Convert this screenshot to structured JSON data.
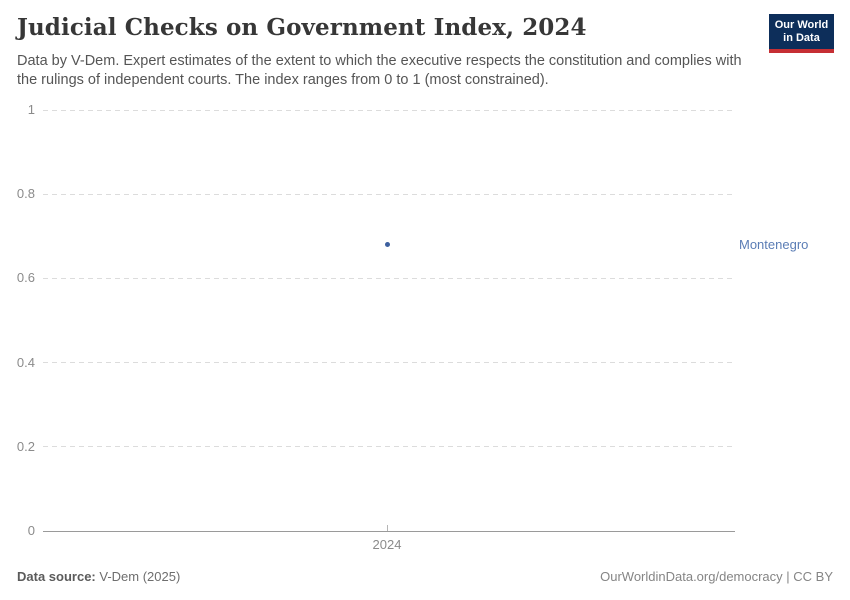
{
  "header": {
    "title": "Judicial Checks on Government Index, 2024",
    "subtitle": "Data by V-Dem. Expert estimates of the extent to which the executive respects the constitution and complies with the rulings of independent courts. The index ranges from 0 to 1 (most constrained).",
    "logo": {
      "line1": "Our World",
      "line2": "in Data",
      "bg_color": "#0d2e5a",
      "accent_color": "#c62f34"
    }
  },
  "chart_data": {
    "type": "scatter",
    "title": "Judicial Checks on Government Index, 2024",
    "x": [
      2024
    ],
    "series": [
      {
        "name": "Montenegro",
        "values": [
          0.68
        ]
      }
    ],
    "xlabel": "",
    "ylabel": "",
    "ylim": [
      0,
      1
    ],
    "yticks": [
      0,
      0.2,
      0.4,
      0.6,
      0.8,
      1
    ],
    "ytick_labels": [
      "0",
      "0.2",
      "0.4",
      "0.6",
      "0.8",
      "1"
    ],
    "xtick_labels": [
      "2024"
    ],
    "grid": "horizontal-dashed",
    "legend_position": "entity-label-right",
    "entity_label": "Montenegro",
    "marker_color": "#3d609f",
    "entity_label_color": "#5b7db5",
    "gridline_color": "#dcdcdc",
    "axis_color": "#9a9a9a"
  },
  "footer": {
    "source_label": "Data source:",
    "source_value": " V-Dem (2025)",
    "credit": "OurWorldinData.org/democracy | CC BY"
  }
}
